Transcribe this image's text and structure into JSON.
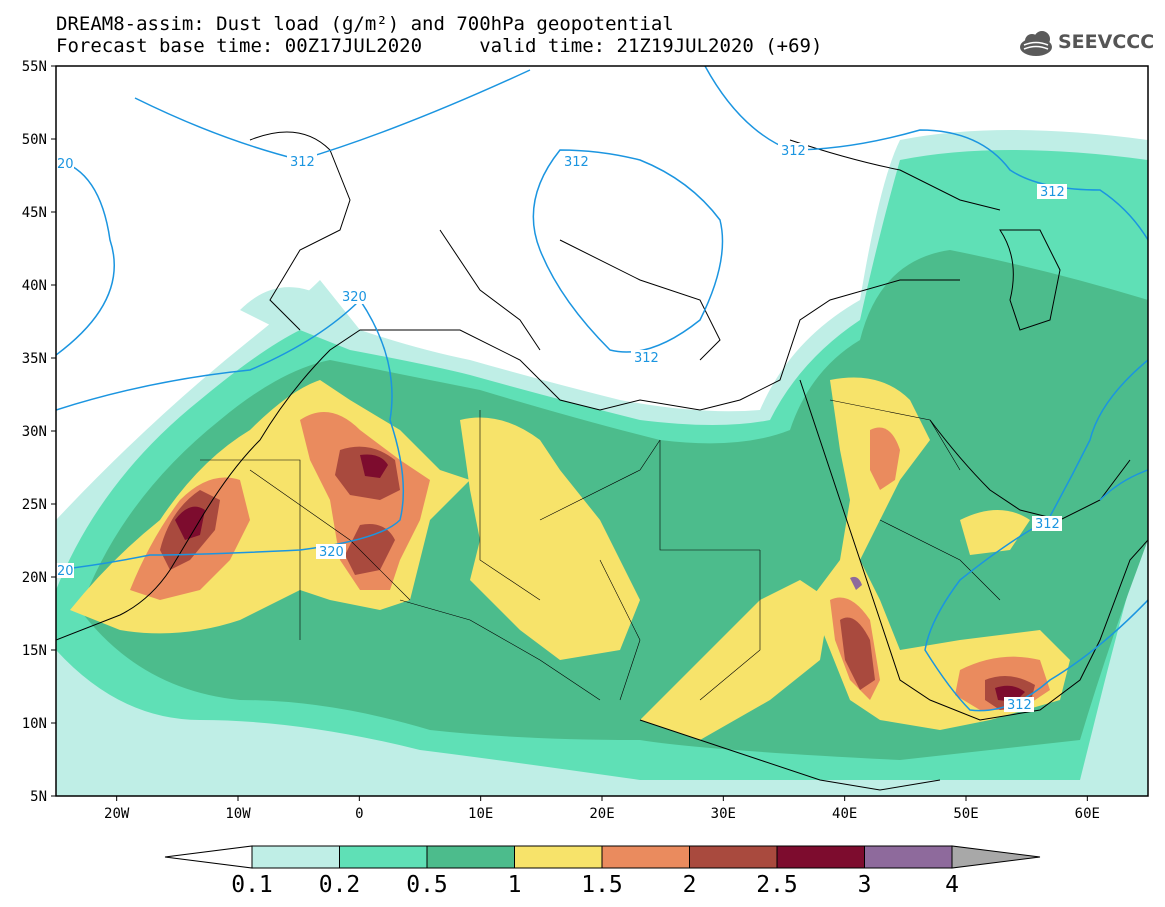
{
  "title": {
    "line1": "DREAM8-assim: Dust load (g/m²) and 700hPa geopotential",
    "line2": "Forecast base time: 00Z17JUL2020     valid time: 21Z19JUL2020 (+69)"
  },
  "logo": {
    "text": "SEEVCCC",
    "icon": "cloud-icon"
  },
  "axes": {
    "lat_labels": [
      "55N",
      "50N",
      "45N",
      "40N",
      "35N",
      "30N",
      "25N",
      "20N",
      "15N",
      "10N",
      "5N"
    ],
    "lon_labels": [
      "20W",
      "10W",
      "0",
      "10E",
      "20E",
      "30E",
      "40E",
      "50E",
      "60E"
    ]
  },
  "contours": {
    "labels": [
      "312",
      "312",
      "312",
      "312",
      "312",
      "320",
      "320",
      "20",
      "20",
      "312",
      "312"
    ]
  },
  "colorbar": {
    "levels": [
      "0.1",
      "0.2",
      "0.5",
      "1",
      "1.5",
      "2",
      "2.5",
      "3",
      "4"
    ],
    "colors": [
      "#bfeee6",
      "#5fe0b6",
      "#4cbc8c",
      "#f7e36a",
      "#ea8b5e",
      "#a94a3e",
      "#7d0c2e",
      "#8e6a9c",
      "#a8a8a8"
    ]
  },
  "palette": {
    "l1": "#bfeee6",
    "l2": "#5fe0b6",
    "l3": "#4cbc8c",
    "l4": "#f7e36a",
    "l5": "#ea8b5e",
    "l6": "#a94a3e",
    "l7": "#7d0c2e",
    "l8": "#8e6a9c",
    "contour": "#1b95e0"
  }
}
